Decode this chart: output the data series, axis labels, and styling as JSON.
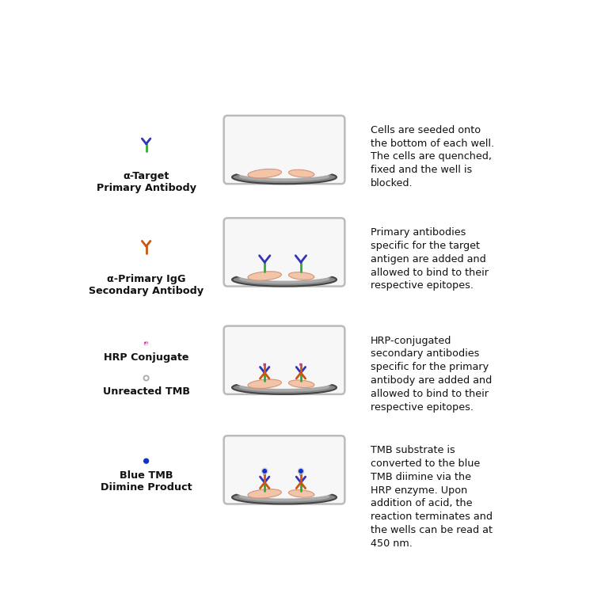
{
  "bg_color": "#ffffff",
  "rows": [
    {
      "legend_label": "α-Target\nPrimary Antibody",
      "description": "Cells are seeded onto\nthe bottom of each well.\nThe cells are quenched,\nfixed and the well is\nblocked.",
      "well_content": "cells_only"
    },
    {
      "legend_label": "α-Primary IgG\nSecondary Antibody",
      "description": "Primary antibodies\nspecific for the target\nantigen are added and\nallowed to bind to their\nrespective epitopes.",
      "well_content": "primary_antibodies"
    },
    {
      "legend_label": "HRP Conjugate",
      "legend_label2": "Unreacted TMB",
      "description": "HRP-conjugated\nsecondary antibodies\nspecific for the primary\nantibody are added and\nallowed to bind to their\nrespective epitopes.",
      "well_content": "hrp_antibodies"
    },
    {
      "legend_label": "Blue TMB\nDiimine Product",
      "description": "TMB substrate is\nconverted to the blue\nTMB diimine via the\nHRP enzyme. Upon\naddition of acid, the\nreaction terminates and\nthe wells can be read at\n450 nm.",
      "well_content": "tmb_product"
    }
  ],
  "colors": {
    "cell_fill": "#f2c4a8",
    "cell_stroke": "#d4957a",
    "well_fill": "#f7f7f7",
    "well_stroke": "#bbbbbb",
    "well_bottom_fill": "#888888",
    "well_bottom_edge": "#444444",
    "ab_green": "#33aa33",
    "ab_blue": "#3333bb",
    "ab_orange": "#cc5511",
    "hrp_pink": "#cc3399",
    "tmb_blue": "#1133cc",
    "tmb_ring": "#cccccc"
  }
}
